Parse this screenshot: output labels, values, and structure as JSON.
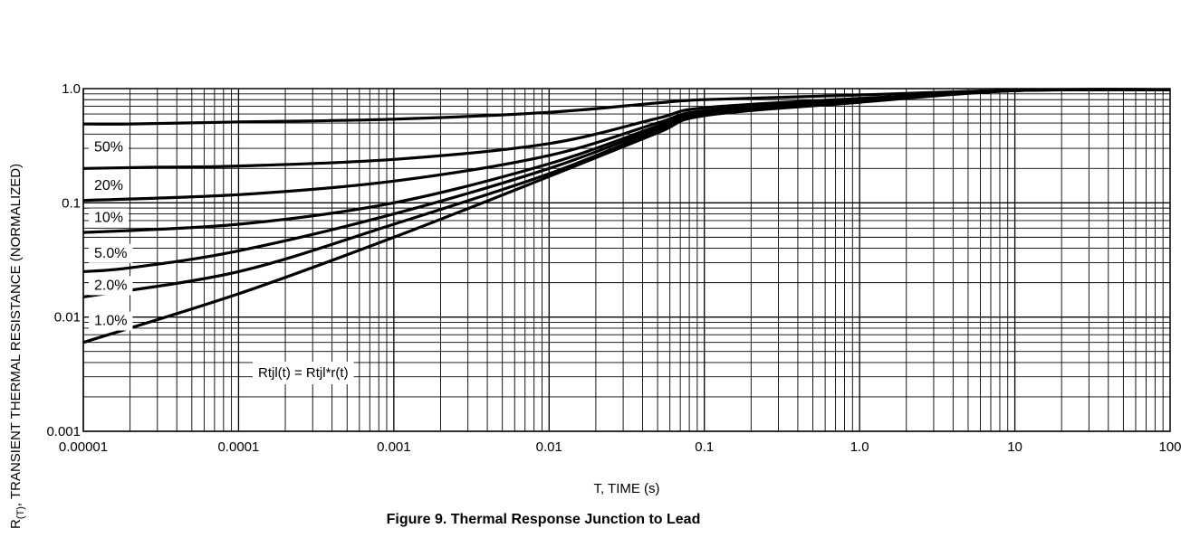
{
  "chart_data": {
    "type": "line",
    "title": "",
    "caption": "Figure 9. Thermal Response Junction to Lead",
    "xlabel": "T, TIME (s)",
    "ylabel": {
      "prefix": "R",
      "subscript": "(T)",
      "rest": ", TRANSIENT THERMAL RESISTANCE (NORMALIZED)"
    },
    "x_scale": "log",
    "y_scale": "log",
    "xlim": [
      1e-05,
      100
    ],
    "ylim": [
      0.001,
      1.0
    ],
    "grid": true,
    "x_ticks": [
      "0.00001",
      "0.0001",
      "0.001",
      "0.01",
      "0.1",
      "1.0",
      "10",
      "100"
    ],
    "y_ticks": [
      "0.001",
      "0.01",
      "0.1",
      "1.0"
    ],
    "annotation": "Rtjl(t) = Rtjl*r(t)",
    "series": [
      {
        "name": "50%",
        "x": [
          1e-05,
          2e-05,
          0.0001,
          0.001,
          0.01,
          0.05,
          0.1,
          1,
          10,
          100
        ],
        "y": [
          0.49,
          0.49,
          0.51,
          0.54,
          0.62,
          0.75,
          0.8,
          0.88,
          0.97,
          0.98
        ]
      },
      {
        "name": "20%",
        "x": [
          1e-05,
          3e-05,
          0.0001,
          0.001,
          0.01,
          0.05,
          0.1,
          1,
          10,
          100
        ],
        "y": [
          0.2,
          0.205,
          0.21,
          0.24,
          0.33,
          0.55,
          0.68,
          0.82,
          0.96,
          0.98
        ]
      },
      {
        "name": "10%",
        "x": [
          1e-05,
          0.0001,
          0.001,
          0.01,
          0.05,
          0.1,
          1,
          10,
          100
        ],
        "y": [
          0.105,
          0.118,
          0.155,
          0.26,
          0.5,
          0.64,
          0.8,
          0.96,
          0.98
        ]
      },
      {
        "name": "5.0%",
        "x": [
          1e-05,
          0.0001,
          0.001,
          0.01,
          0.05,
          0.1,
          1,
          10,
          100
        ],
        "y": [
          0.055,
          0.065,
          0.1,
          0.22,
          0.47,
          0.63,
          0.79,
          0.96,
          0.98
        ]
      },
      {
        "name": "2.0%",
        "x": [
          1e-05,
          2e-05,
          0.0001,
          0.001,
          0.01,
          0.05,
          0.1,
          1,
          10,
          100
        ],
        "y": [
          0.025,
          0.027,
          0.038,
          0.08,
          0.2,
          0.45,
          0.62,
          0.78,
          0.96,
          0.98
        ]
      },
      {
        "name": "1.0%",
        "x": [
          1e-05,
          0.0001,
          0.001,
          0.01,
          0.05,
          0.1,
          1,
          10,
          100
        ],
        "y": [
          0.015,
          0.025,
          0.065,
          0.18,
          0.43,
          0.6,
          0.77,
          0.96,
          0.98
        ]
      },
      {
        "name": "",
        "x": [
          1e-05,
          0.0001,
          0.001,
          0.01,
          0.05,
          0.1,
          1,
          10,
          100
        ],
        "y": [
          0.006,
          0.016,
          0.05,
          0.17,
          0.41,
          0.58,
          0.76,
          0.96,
          0.98
        ]
      }
    ]
  }
}
